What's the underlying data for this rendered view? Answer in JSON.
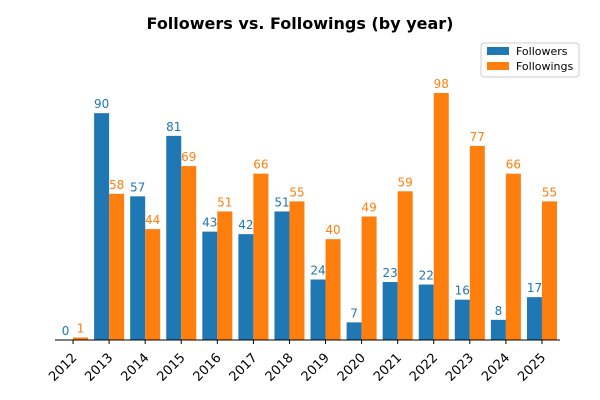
{
  "chart_data": {
    "type": "bar",
    "title": "Followers vs. Followings (by year)",
    "xlabel": "",
    "ylabel": "",
    "categories": [
      "2012",
      "2013",
      "2014",
      "2015",
      "2016",
      "2017",
      "2018",
      "2019",
      "2020",
      "2021",
      "2022",
      "2023",
      "2024",
      "2025"
    ],
    "series": [
      {
        "name": "Followers",
        "color": "#1f77b4",
        "values": [
          0,
          90,
          57,
          81,
          43,
          42,
          51,
          24,
          7,
          23,
          22,
          16,
          8,
          17
        ]
      },
      {
        "name": "Followings",
        "color": "#ff7f0e",
        "values": [
          1,
          58,
          44,
          69,
          51,
          66,
          55,
          40,
          49,
          59,
          98,
          77,
          66,
          55
        ]
      }
    ],
    "ylim": [
      0,
      108
    ],
    "grid": false,
    "legend_position": "top-right",
    "y_axis_visible": false
  }
}
